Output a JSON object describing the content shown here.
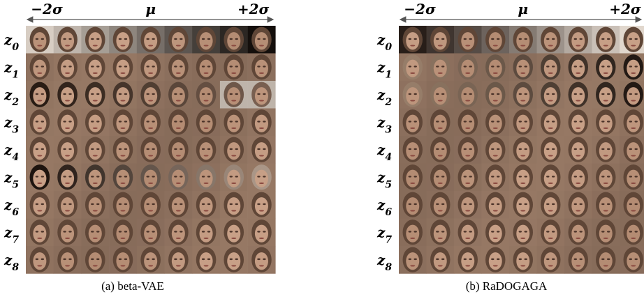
{
  "panels": [
    {
      "header": {
        "left": "−2σ",
        "center": "μ",
        "right": "+2σ"
      },
      "rows": [
        "z0",
        "z1",
        "z2",
        "z3",
        "z4",
        "z5",
        "z6",
        "z7",
        "z8"
      ],
      "caption": "(a) beta-VAE"
    },
    {
      "header": {
        "left": "−2σ",
        "center": "μ",
        "right": "+2σ"
      },
      "rows": [
        "z0",
        "z1",
        "z2",
        "z3",
        "z4",
        "z5",
        "z6",
        "z7",
        "z8"
      ],
      "caption": "(b) RaDOGAGA"
    }
  ]
}
